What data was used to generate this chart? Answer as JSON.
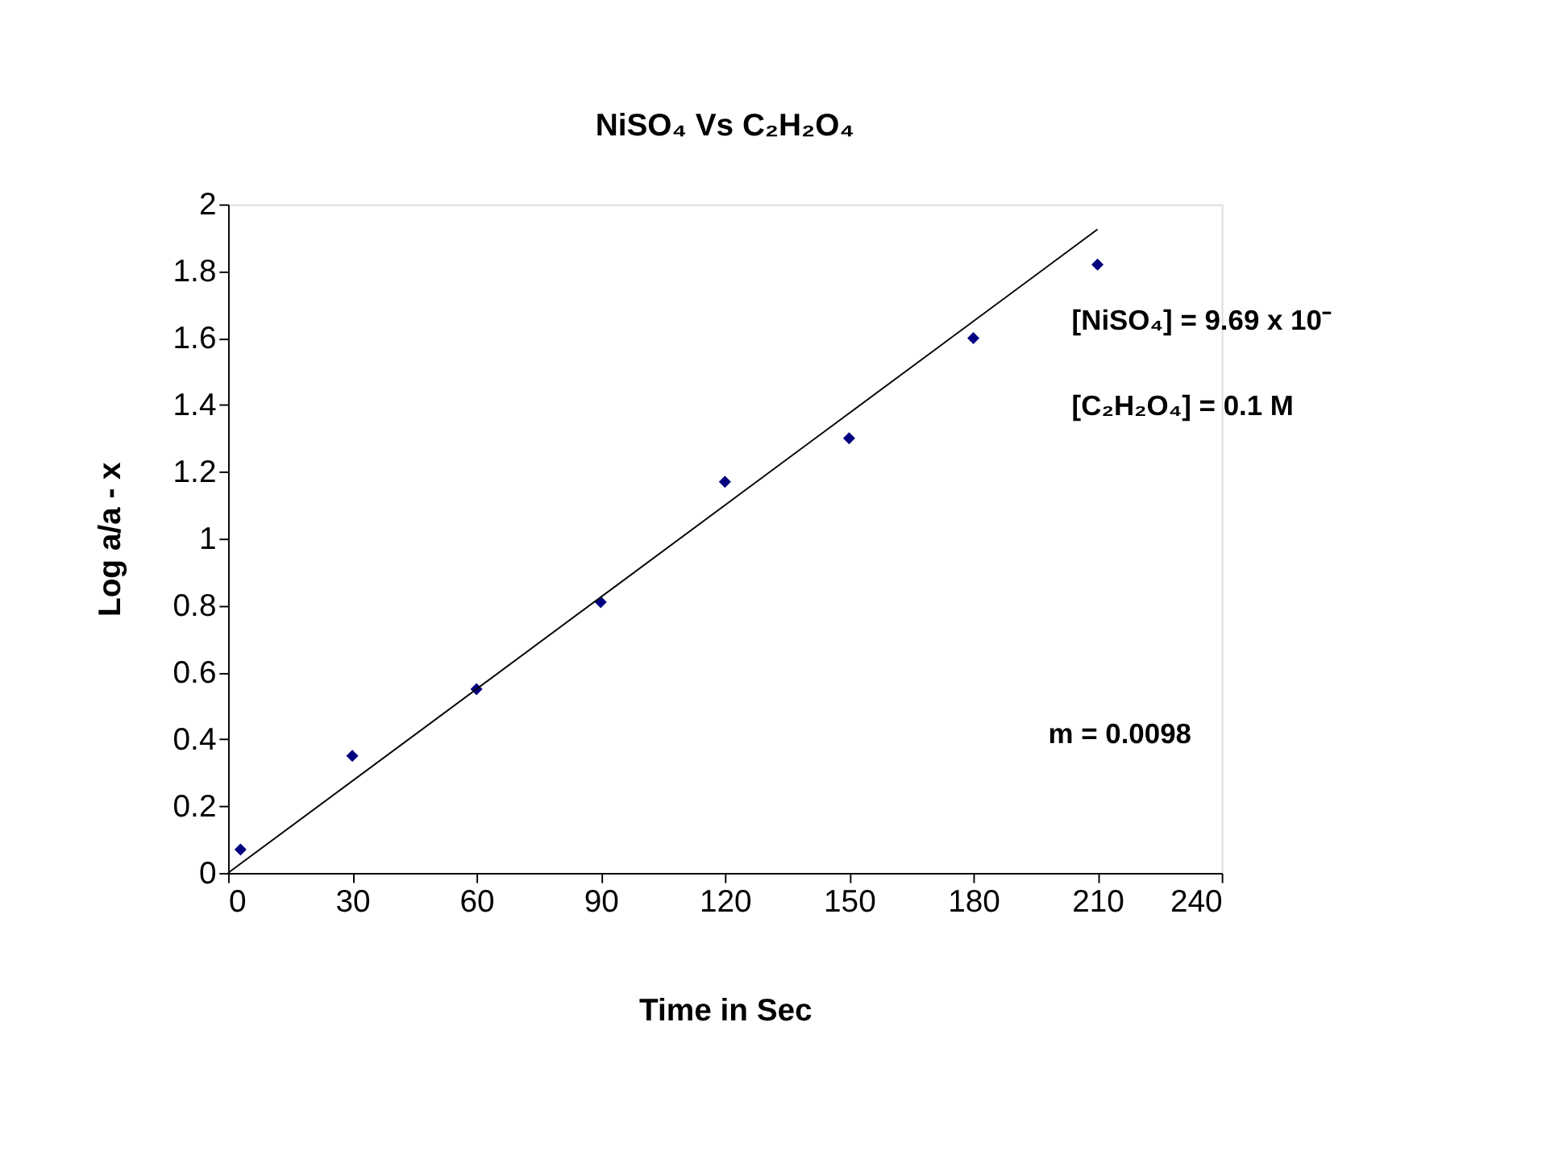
{
  "chart_data": {
    "type": "scatter",
    "title": "NiSO₄   Vs   C₂H₂O₄",
    "xlabel": "Time in Sec",
    "ylabel": "Log   a/a - x",
    "series": [
      {
        "color": "#000080",
        "marker": "diamond",
        "x": [
          3,
          30,
          60,
          90,
          120,
          150,
          180,
          210
        ],
        "values": [
          0.07,
          0.35,
          0.55,
          0.81,
          1.17,
          1.3,
          1.6,
          1.82
        ]
      },
      {
        "type": "line",
        "color": "#000000",
        "marker": "none",
        "line_style": "solid",
        "x": [
          0,
          210
        ],
        "values": [
          0,
          1.925
        ]
      }
    ],
    "xlim": [
      0,
      240
    ],
    "xticks": [
      0,
      30,
      60,
      90,
      120,
      150,
      180,
      210,
      240
    ],
    "ylim": [
      0,
      2
    ],
    "yticks": [
      0,
      0.2,
      0.4,
      0.6,
      0.8,
      1,
      1.2,
      1.4,
      1.6,
      1.8,
      2
    ],
    "grid": false,
    "annotations": [
      "[NiSO₄] = 9.69 x 10⁻",
      "[C₂H₂O₄] = 0.1 M",
      "m = 0.0098"
    ]
  }
}
